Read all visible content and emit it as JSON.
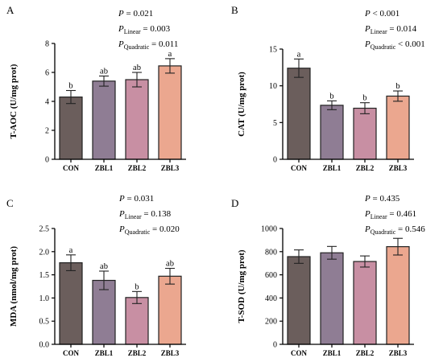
{
  "chart_data": [
    {
      "type": "bar",
      "panel": "A",
      "categories": [
        "CON",
        "ZBL1",
        "ZBL2",
        "ZBL3"
      ],
      "values": [
        4.3,
        5.4,
        5.5,
        6.45
      ],
      "errors": [
        0.45,
        0.35,
        0.5,
        0.5
      ],
      "letters": [
        "b",
        "ab",
        "ab",
        "a"
      ],
      "ylabel": "T-AOC (U/mg prot)",
      "ylim": [
        0,
        8
      ],
      "yticks": [
        "0",
        "2",
        "4",
        "6",
        "8"
      ],
      "stats": [
        {
          "prefix": "P",
          "sub": "",
          "text": " = 0.021"
        },
        {
          "prefix": "P",
          "sub": "Linear",
          "text": " = 0.003"
        },
        {
          "prefix": "P",
          "sub": "Quadratic",
          "text": " = 0.011"
        }
      ]
    },
    {
      "type": "bar",
      "panel": "B",
      "categories": [
        "CON",
        "ZBL1",
        "ZBL2",
        "ZBL3"
      ],
      "values": [
        12.4,
        7.35,
        6.95,
        8.6
      ],
      "errors": [
        1.25,
        0.6,
        0.75,
        0.7
      ],
      "letters": [
        "a",
        "b",
        "b",
        "b"
      ],
      "ylabel": "CAT (U/mg prot)",
      "ylim": [
        0,
        15
      ],
      "yticks": [
        "0",
        "5",
        "10",
        "15"
      ],
      "stats": [
        {
          "prefix": "P",
          "sub": "",
          "text": " < 0.001"
        },
        {
          "prefix": "P",
          "sub": "Linear",
          "text": " = 0.014"
        },
        {
          "prefix": "P",
          "sub": "Quadratic",
          "text": " < 0.001"
        }
      ]
    },
    {
      "type": "bar",
      "panel": "C",
      "categories": [
        "CON",
        "ZBL1",
        "ZBL2",
        "ZBL3"
      ],
      "values": [
        1.76,
        1.38,
        1.01,
        1.47
      ],
      "errors": [
        0.17,
        0.2,
        0.13,
        0.17
      ],
      "letters": [
        "a",
        "ab",
        "b",
        "ab"
      ],
      "ylabel": "MDA (nmol/mg prot)",
      "ylim": [
        0,
        2.5
      ],
      "yticks": [
        "0.0",
        "0.5",
        "1.0",
        "1.5",
        "2.0",
        "2.5"
      ],
      "stats": [
        {
          "prefix": "P",
          "sub": "",
          "text": " = 0.031"
        },
        {
          "prefix": "P",
          "sub": "Linear",
          "text": " = 0.138"
        },
        {
          "prefix": "P",
          "sub": "Quadratic",
          "text": " = 0.020"
        }
      ]
    },
    {
      "type": "bar",
      "panel": "D",
      "categories": [
        "CON",
        "ZBL1",
        "ZBL2",
        "ZBL3"
      ],
      "values": [
        757,
        790,
        715,
        843
      ],
      "errors": [
        58,
        55,
        48,
        72
      ],
      "letters": [
        "",
        "",
        "",
        ""
      ],
      "ylabel": "T-SOD (U/mg prot)",
      "ylim": [
        0,
        1000
      ],
      "yticks": [
        "0",
        "200",
        "400",
        "600",
        "800",
        "1000"
      ],
      "stats": [
        {
          "prefix": "P",
          "sub": "",
          "text": " = 0.435"
        },
        {
          "prefix": "P",
          "sub": "Linear",
          "text": " = 0.461"
        },
        {
          "prefix": "P",
          "sub": "Quadratic",
          "text": " = 0.546"
        }
      ]
    }
  ],
  "colors": [
    "#6b5e5c",
    "#8f7d94",
    "#c88fa3",
    "#eba78f"
  ]
}
